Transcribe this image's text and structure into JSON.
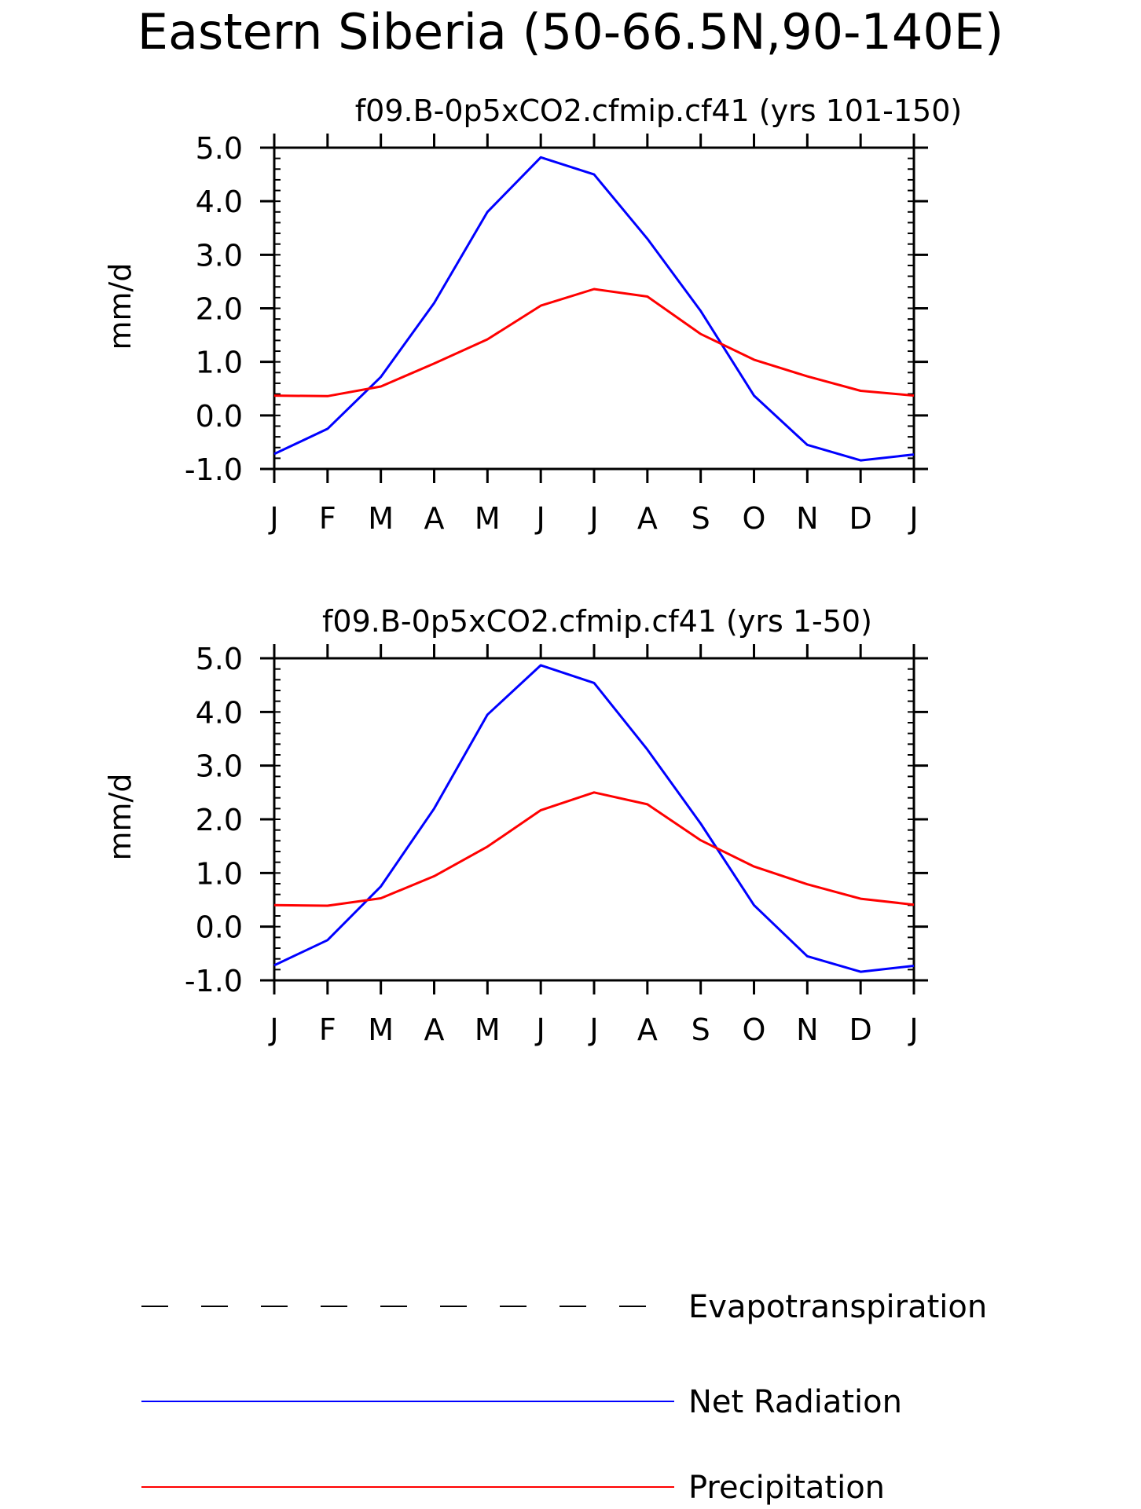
{
  "figure": {
    "title": "Eastern Siberia (50-66.5N,90-140E)",
    "legend": [
      {
        "label": "Evapotranspiration",
        "color": "#000000",
        "dash": "dashed"
      },
      {
        "label": "Net Radiation",
        "color": "#0000ff",
        "dash": "solid"
      },
      {
        "label": "Precipitation",
        "color": "#ff0000",
        "dash": "solid"
      }
    ]
  },
  "chart_data": [
    {
      "type": "line",
      "title": "f09.B-0p5xCO2.cfmip.cf41 (yrs 101-150)",
      "xlabel": "",
      "ylabel": "mm/d",
      "categories": [
        "J",
        "F",
        "M",
        "A",
        "M",
        "J",
        "J",
        "A",
        "S",
        "O",
        "N",
        "D",
        "J"
      ],
      "yticks": [
        "5.0",
        "4.0",
        "3.0",
        "2.0",
        "1.0",
        "0.0",
        "-1.0"
      ],
      "ylim": [
        -1.0,
        5.0
      ],
      "grid": false,
      "series": [
        {
          "name": "Net Radiation",
          "color": "#0000ff",
          "values": [
            -0.72,
            -0.25,
            0.72,
            2.1,
            3.8,
            4.82,
            4.5,
            3.3,
            1.95,
            0.37,
            -0.55,
            -0.84,
            -0.73
          ]
        },
        {
          "name": "Precipitation",
          "color": "#ff0000",
          "values": [
            0.37,
            0.36,
            0.54,
            0.97,
            1.42,
            2.05,
            2.36,
            2.22,
            1.52,
            1.04,
            0.73,
            0.46,
            0.37
          ]
        }
      ]
    },
    {
      "type": "line",
      "title": "f09.B-0p5xCO2.cfmip.cf41 (yrs 1-50)",
      "xlabel": "",
      "ylabel": "mm/d",
      "categories": [
        "J",
        "F",
        "M",
        "A",
        "M",
        "J",
        "J",
        "A",
        "S",
        "O",
        "N",
        "D",
        "J"
      ],
      "yticks": [
        "5.0",
        "4.0",
        "3.0",
        "2.0",
        "1.0",
        "0.0",
        "-1.0"
      ],
      "ylim": [
        -1.0,
        5.0
      ],
      "grid": false,
      "series": [
        {
          "name": "Net Radiation",
          "color": "#0000ff",
          "values": [
            -0.72,
            -0.25,
            0.75,
            2.2,
            3.95,
            4.87,
            4.54,
            3.3,
            1.92,
            0.4,
            -0.55,
            -0.84,
            -0.73
          ]
        },
        {
          "name": "Precipitation",
          "color": "#ff0000",
          "values": [
            0.4,
            0.39,
            0.53,
            0.94,
            1.49,
            2.17,
            2.5,
            2.28,
            1.61,
            1.12,
            0.79,
            0.52,
            0.41
          ]
        }
      ]
    }
  ]
}
